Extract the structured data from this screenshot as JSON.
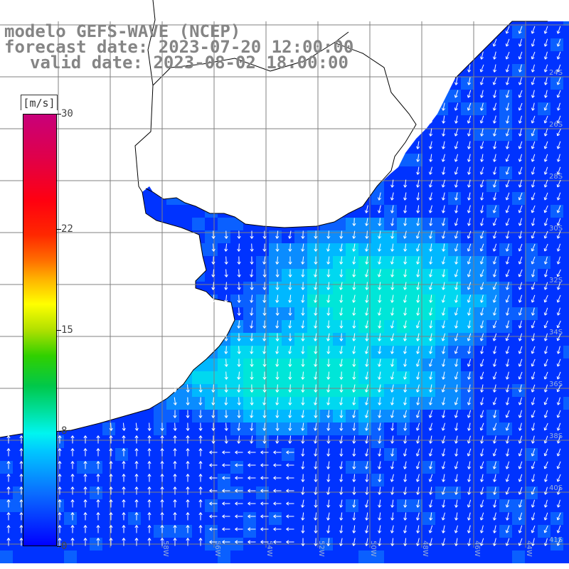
{
  "header": {
    "line1": "modelo GEFS-WAVE (NCEP)",
    "line2": "forecast date: 2023-07-20 12:00:00",
    "line3": "valid date: 2023-08-02 18:00:00"
  },
  "colorbar": {
    "unit": "[m/s]",
    "ticks": [
      {
        "label": "30",
        "value": 30
      },
      {
        "label": "22",
        "value": 22
      },
      {
        "label": "15",
        "value": 15
      },
      {
        "label": "8",
        "value": 8
      },
      {
        "label": "0",
        "value": 0
      }
    ],
    "min": 0,
    "max": 30
  },
  "map": {
    "colors": {
      "land": "#ffffff",
      "coast": "#000000",
      "grid": "#808080",
      "arrow": "#ffffff",
      "ocean_low": "#0033ff",
      "ocean_mid": "#0aa0ff",
      "ocean_high": "#00e8e8"
    },
    "lon_labels": [
      "58W",
      "56W",
      "54W",
      "52W",
      "50W",
      "48W",
      "46W",
      "44W"
    ],
    "lat_labels": [
      "24S",
      "26S",
      "28S",
      "30S",
      "32S",
      "34S",
      "36S",
      "38S",
      "40S",
      "41S"
    ]
  }
}
